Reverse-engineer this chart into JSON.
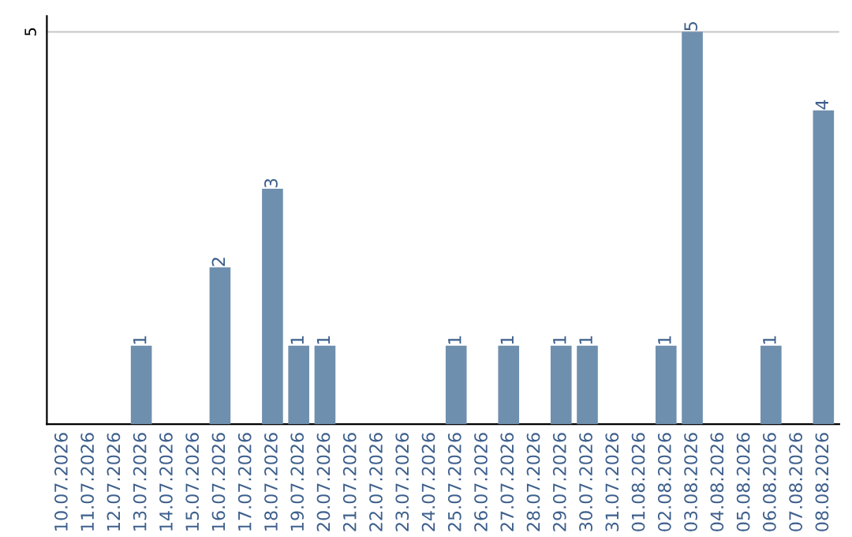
{
  "chart_data": {
    "type": "bar",
    "categories": [
      "10.07.2026",
      "11.07.2026",
      "12.07.2026",
      "13.07.2026",
      "14.07.2026",
      "15.07.2026",
      "16.07.2026",
      "17.07.2026",
      "18.07.2026",
      "19.07.2026",
      "20.07.2026",
      "21.07.2026",
      "22.07.2026",
      "23.07.2026",
      "24.07.2026",
      "25.07.2026",
      "26.07.2026",
      "27.07.2026",
      "28.07.2026",
      "29.07.2026",
      "30.07.2026",
      "31.07.2026",
      "01.08.2026",
      "02.08.2026",
      "03.08.2026",
      "04.08.2026",
      "05.08.2026",
      "06.08.2026",
      "07.08.2026",
      "08.08.2026"
    ],
    "values": [
      0,
      0,
      0,
      1,
      0,
      0,
      2,
      0,
      3,
      1,
      1,
      0,
      0,
      0,
      0,
      1,
      0,
      1,
      0,
      1,
      1,
      0,
      0,
      1,
      5,
      0,
      0,
      1,
      0,
      4
    ],
    "value_labels": [
      null,
      null,
      null,
      "1",
      null,
      null,
      "2",
      null,
      "3",
      "1",
      "1",
      null,
      null,
      null,
      null,
      "1",
      null,
      "1",
      null,
      "1",
      "1",
      null,
      null,
      "1",
      "5",
      null,
      null,
      "1",
      null,
      "4"
    ],
    "color": "#6f8fae",
    "ylim": [
      0,
      5.2
    ],
    "yticks": [
      5
    ],
    "grid": "y"
  }
}
